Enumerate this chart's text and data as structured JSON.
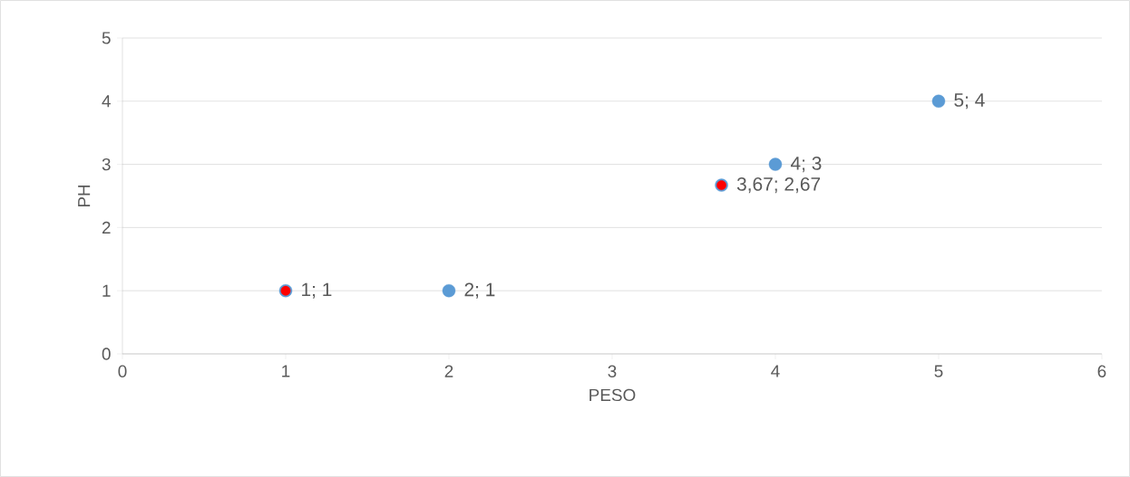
{
  "chart_data": {
    "type": "scatter",
    "xlabel": "PESO",
    "ylabel": "PH",
    "xlim": [
      0,
      6
    ],
    "ylim": [
      0,
      5
    ],
    "xticks": [
      0,
      1,
      2,
      3,
      4,
      5,
      6
    ],
    "yticks": [
      0,
      1,
      2,
      3,
      4,
      5
    ],
    "grid": "y",
    "marker": "circle",
    "series": [
      {
        "color": "#5b9bd5",
        "x": [
          1,
          2,
          3.67,
          4,
          5
        ],
        "values": [
          1,
          1,
          2.67,
          3,
          4
        ],
        "value_labels": [
          "1; 1",
          "2; 1",
          "3,67; 2,67",
          "4; 3",
          "5; 4"
        ]
      },
      {
        "color": "#ff0000",
        "x": [
          1,
          3.67
        ],
        "values": [
          1,
          2.67
        ]
      }
    ]
  }
}
